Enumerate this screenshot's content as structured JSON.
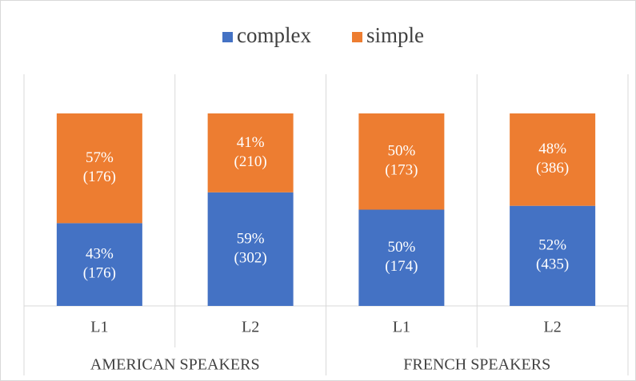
{
  "chart_data": {
    "type": "stacked_bar",
    "categories": [
      "L1",
      "L2",
      "L1",
      "L2"
    ],
    "groups": [
      {
        "name": "AMERICAN SPEAKERS",
        "span": 2
      },
      {
        "name": "FRENCH SPEAKERS",
        "span": 2
      }
    ],
    "series": [
      {
        "name": "complex",
        "color": "#4472c4",
        "values": [
          43,
          59,
          50,
          52
        ],
        "value_labels": [
          "43%",
          "59%",
          "50%",
          "52%"
        ],
        "count_labels": [
          "(176)",
          "(302)",
          "(174)",
          "(435)"
        ]
      },
      {
        "name": "simple",
        "color": "#ed7d31",
        "values": [
          57,
          41,
          50,
          48
        ],
        "value_labels": [
          "57%",
          "41%",
          "50%",
          "48%"
        ],
        "count_labels": [
          "(176)",
          "(210)",
          "(173)",
          "(386)"
        ]
      }
    ],
    "ylim": [
      0,
      100
    ],
    "legend": "top"
  }
}
